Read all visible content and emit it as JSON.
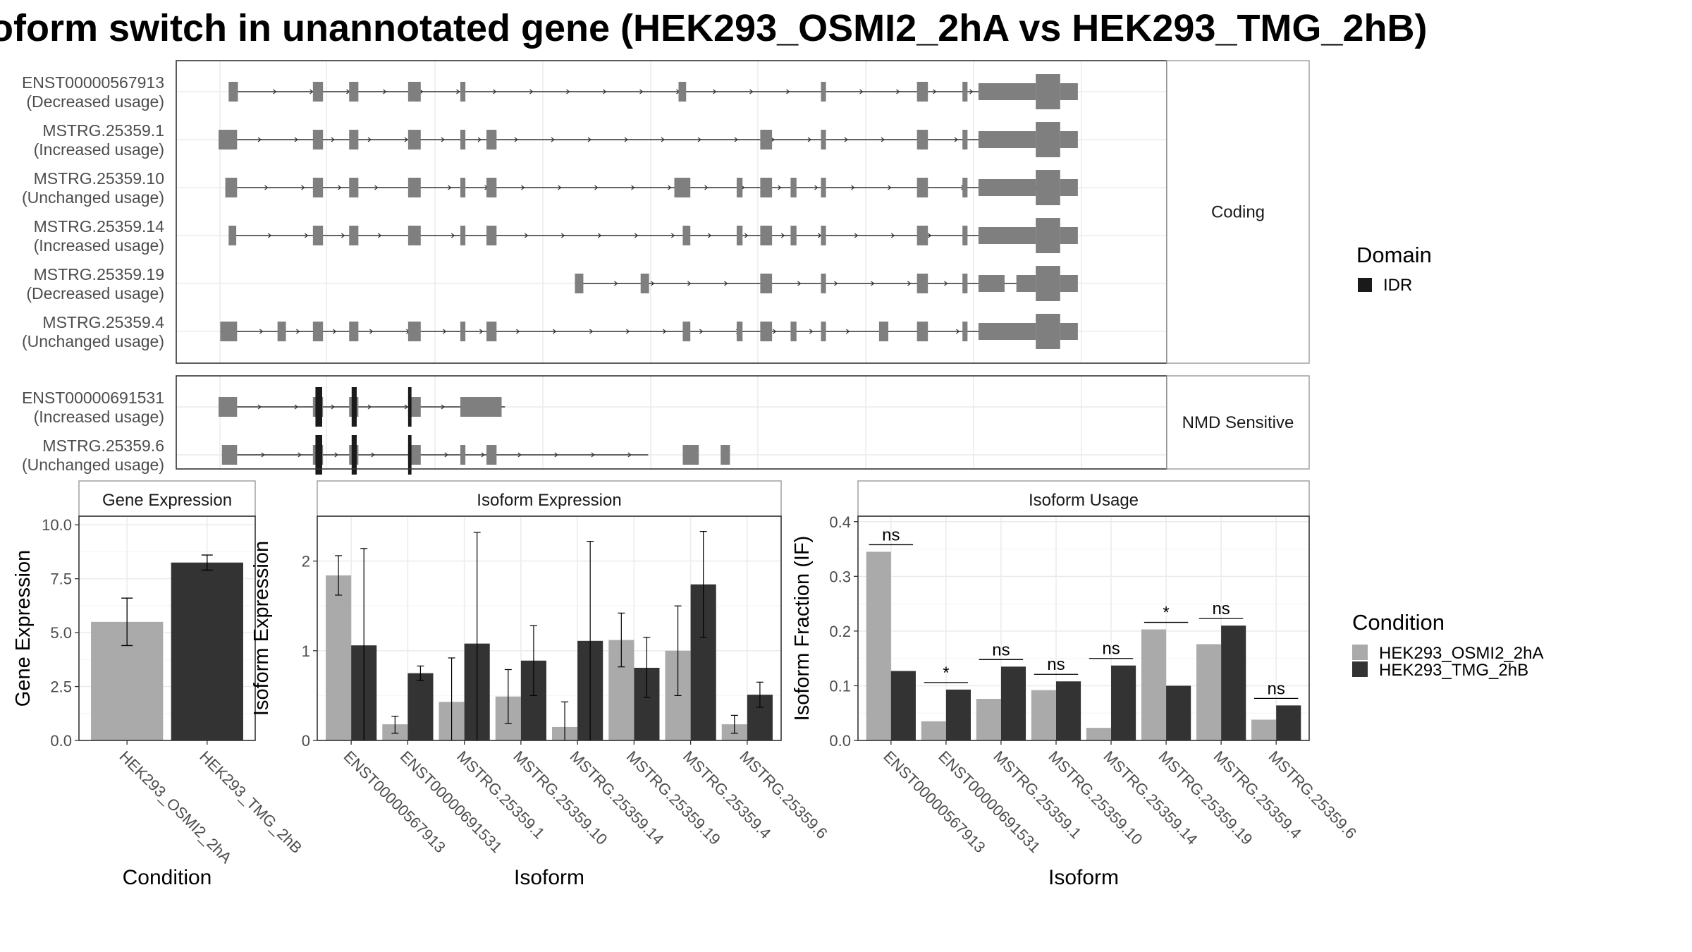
{
  "title": "oform switch in unannotated gene (HEK293_OSMI2_2hA vs HEK293_TMG_2hB)",
  "colors": {
    "exon": "#7f7f7f",
    "domain_idr": "#1a1a1a",
    "condition_a": "#aaaaaa",
    "condition_b": "#333333",
    "strip_border": "#999999",
    "panel_border": "#333333",
    "grid": "#ebebeb",
    "text": "#000000",
    "axis_text": "#4d4d4d"
  },
  "icons": {
    "domain_key": "filled-square",
    "condition_key": "filled-square"
  },
  "isoform_structure": {
    "coordinate_domain": [
      0,
      1000
    ],
    "groups": [
      {
        "strip_label": "Coding",
        "transcripts": [
          {
            "id": "ENST00000567913",
            "usage": "(Decreased usage)",
            "line": [
              18,
              1000
            ],
            "exons": [
              [
                12,
                23,
                "n"
              ],
              [
                112,
                124,
                "n"
              ],
              [
                155,
                166,
                "n"
              ],
              [
                225,
                240,
                "n"
              ],
              [
                287,
                293,
                "n"
              ],
              [
                546,
                555,
                "n"
              ],
              [
                715,
                721,
                "n"
              ],
              [
                829,
                842,
                "n"
              ],
              [
                883,
                889,
                "n"
              ],
              [
                902,
                970,
                "u"
              ],
              [
                970,
                999,
                "c"
              ],
              [
                999,
                1020,
                "u"
              ]
            ]
          },
          {
            "id": "MSTRG.25359.1",
            "usage": "(Increased usage)",
            "line": [
              0,
              1000
            ],
            "exons": [
              [
                0,
                22,
                "n"
              ],
              [
                112,
                124,
                "n"
              ],
              [
                155,
                166,
                "n"
              ],
              [
                225,
                240,
                "n"
              ],
              [
                287,
                293,
                "n"
              ],
              [
                318,
                330,
                "n"
              ],
              [
                643,
                657,
                "n"
              ],
              [
                715,
                721,
                "n"
              ],
              [
                829,
                842,
                "n"
              ],
              [
                883,
                889,
                "n"
              ],
              [
                902,
                970,
                "u"
              ],
              [
                970,
                999,
                "c"
              ],
              [
                999,
                1020,
                "u"
              ]
            ]
          },
          {
            "id": "MSTRG.25359.10",
            "usage": "(Unchanged usage)",
            "line": [
              8,
              1000
            ],
            "exons": [
              [
                8,
                22,
                "n"
              ],
              [
                112,
                124,
                "n"
              ],
              [
                155,
                166,
                "n"
              ],
              [
                225,
                240,
                "n"
              ],
              [
                287,
                293,
                "n"
              ],
              [
                318,
                330,
                "n"
              ],
              [
                541,
                560,
                "n"
              ],
              [
                615,
                622,
                "n"
              ],
              [
                643,
                657,
                "n"
              ],
              [
                679,
                686,
                "n"
              ],
              [
                715,
                721,
                "n"
              ],
              [
                829,
                842,
                "n"
              ],
              [
                883,
                889,
                "n"
              ],
              [
                902,
                970,
                "u"
              ],
              [
                970,
                999,
                "c"
              ],
              [
                999,
                1020,
                "u"
              ]
            ]
          },
          {
            "id": "MSTRG.25359.14",
            "usage": "(Increased usage)",
            "line": [
              12,
              1000
            ],
            "exons": [
              [
                12,
                21,
                "n"
              ],
              [
                112,
                124,
                "n"
              ],
              [
                155,
                166,
                "n"
              ],
              [
                225,
                240,
                "n"
              ],
              [
                287,
                293,
                "n"
              ],
              [
                318,
                330,
                "n"
              ],
              [
                551,
                560,
                "n"
              ],
              [
                615,
                622,
                "n"
              ],
              [
                643,
                657,
                "n"
              ],
              [
                679,
                686,
                "n"
              ],
              [
                715,
                721,
                "n"
              ],
              [
                829,
                842,
                "n"
              ],
              [
                883,
                889,
                "n"
              ],
              [
                902,
                970,
                "u"
              ],
              [
                970,
                999,
                "c"
              ],
              [
                999,
                1020,
                "u"
              ]
            ]
          },
          {
            "id": "MSTRG.25359.19",
            "usage": "(Decreased usage)",
            "line": [
              423,
              1000
            ],
            "exons": [
              [
                423,
                433,
                "n"
              ],
              [
                501,
                511,
                "n"
              ],
              [
                643,
                657,
                "n"
              ],
              [
                715,
                721,
                "n"
              ],
              [
                829,
                842,
                "n"
              ],
              [
                883,
                889,
                "n"
              ],
              [
                902,
                933,
                "u"
              ],
              [
                947,
                970,
                "u"
              ],
              [
                970,
                999,
                "c"
              ],
              [
                999,
                1020,
                "u"
              ]
            ]
          },
          {
            "id": "MSTRG.25359.4",
            "usage": "(Unchanged usage)",
            "line": [
              2,
              1000
            ],
            "exons": [
              [
                2,
                22,
                "n"
              ],
              [
                70,
                80,
                "n"
              ],
              [
                112,
                124,
                "n"
              ],
              [
                155,
                166,
                "n"
              ],
              [
                225,
                240,
                "n"
              ],
              [
                287,
                293,
                "n"
              ],
              [
                318,
                330,
                "n"
              ],
              [
                551,
                560,
                "n"
              ],
              [
                615,
                622,
                "n"
              ],
              [
                643,
                657,
                "n"
              ],
              [
                679,
                686,
                "n"
              ],
              [
                715,
                721,
                "n"
              ],
              [
                784,
                795,
                "n"
              ],
              [
                829,
                842,
                "n"
              ],
              [
                883,
                889,
                "n"
              ],
              [
                902,
                970,
                "u"
              ],
              [
                970,
                999,
                "c"
              ],
              [
                999,
                1020,
                "u"
              ]
            ]
          }
        ]
      },
      {
        "strip_label": "NMD Sensitive",
        "transcripts": [
          {
            "id": "ENST00000691531",
            "usage": "(Increased usage)",
            "line": [
              0,
              340
            ],
            "exons": [
              [
                0,
                22,
                "n"
              ],
              [
                112,
                124,
                "n"
              ],
              [
                155,
                166,
                "n"
              ],
              [
                225,
                240,
                "n"
              ],
              [
                287,
                336,
                "n"
              ]
            ],
            "domains": [
              [
                115,
                123
              ],
              [
                158,
                164
              ],
              [
                225,
                229
              ]
            ]
          },
          {
            "id": "MSTRG.25359.6",
            "usage": "(Unchanged usage)",
            "line": [
              4,
              510
            ],
            "exons": [
              [
                4,
                22,
                "n"
              ],
              [
                112,
                124,
                "n"
              ],
              [
                155,
                166,
                "n"
              ],
              [
                225,
                240,
                "n"
              ],
              [
                287,
                293,
                "n"
              ],
              [
                318,
                330,
                "n"
              ],
              [
                551,
                570,
                "n"
              ],
              [
                596,
                607,
                "n"
              ]
            ],
            "domains": [
              [
                115,
                123
              ],
              [
                158,
                164
              ],
              [
                225,
                229
              ]
            ]
          }
        ]
      }
    ]
  },
  "legend_domain": {
    "title": "Domain",
    "items": [
      {
        "label": "IDR"
      }
    ]
  },
  "legend_condition": {
    "title": "Condition",
    "items": [
      {
        "label": "HEK293_OSMI2_2hA"
      },
      {
        "label": "HEK293_TMG_2hB"
      }
    ]
  },
  "chart_data": [
    {
      "type": "bar",
      "title": "Gene Expression",
      "xlabel": "Condition",
      "ylabel": "Gene Expression",
      "ylim": [
        0,
        10.4
      ],
      "yticks": [
        "0.0",
        "2.5",
        "5.0",
        "7.5",
        "10.0"
      ],
      "categories": [
        "HEK293_OSMI2_2hA",
        "HEK293_TMG_2hB"
      ],
      "series": [
        {
          "name": "Gene Expression",
          "values": [
            5.5,
            8.25
          ]
        }
      ],
      "errors": [
        [
          4.4,
          6.6
        ],
        [
          7.9,
          8.6
        ]
      ],
      "grid": true
    },
    {
      "type": "bar",
      "title": "Isoform Expression",
      "xlabel": "Isoform",
      "ylabel": "Isoform Expression",
      "ylim": [
        0,
        2.5
      ],
      "yticks": [
        "0",
        "1",
        "2"
      ],
      "categories": [
        "ENST00000567913",
        "ENST00000691531",
        "MSTRG.25359.1",
        "MSTRG.25359.10",
        "MSTRG.25359.14",
        "MSTRG.25359.19",
        "MSTRG.25359.4",
        "MSTRG.25359.6"
      ],
      "series": [
        {
          "name": "HEK293_OSMI2_2hA",
          "values": [
            1.84,
            0.18,
            0.43,
            0.49,
            0.15,
            1.12,
            1.0,
            0.18
          ],
          "errors": [
            [
              1.62,
              2.06
            ],
            [
              0.08,
              0.27
            ],
            [
              0.0,
              0.92
            ],
            [
              0.19,
              0.79
            ],
            [
              0.0,
              0.43
            ],
            [
              0.82,
              1.42
            ],
            [
              0.5,
              1.5
            ],
            [
              0.08,
              0.28
            ]
          ]
        },
        {
          "name": "HEK293_TMG_2hB",
          "values": [
            1.06,
            0.75,
            1.08,
            0.89,
            1.11,
            0.81,
            1.74,
            0.51
          ],
          "errors": [
            [
              0.0,
              2.14
            ],
            [
              0.67,
              0.83
            ],
            [
              0.0,
              2.32
            ],
            [
              0.5,
              1.28
            ],
            [
              0.0,
              2.22
            ],
            [
              0.48,
              1.15
            ],
            [
              1.15,
              2.33
            ],
            [
              0.37,
              0.65
            ]
          ]
        }
      ],
      "legend": "right",
      "grid": true
    },
    {
      "type": "bar",
      "title": "Isoform Usage",
      "xlabel": "Isoform",
      "ylabel": "Isoform Fraction (IF)",
      "ylim": [
        0,
        0.41
      ],
      "yticks": [
        "0.0",
        "0.1",
        "0.2",
        "0.3",
        "0.4"
      ],
      "categories": [
        "ENST00000567913",
        "ENST00000691531",
        "MSTRG.25359.1",
        "MSTRG.25359.10",
        "MSTRG.25359.14",
        "MSTRG.25359.19",
        "MSTRG.25359.4",
        "MSTRG.25359.6"
      ],
      "series": [
        {
          "name": "HEK293_OSMI2_2hA",
          "values": [
            0.345,
            0.035,
            0.076,
            0.092,
            0.023,
            0.203,
            0.176,
            0.038
          ]
        },
        {
          "name": "HEK293_TMG_2hB",
          "values": [
            0.127,
            0.093,
            0.135,
            0.108,
            0.137,
            0.1,
            0.21,
            0.064
          ]
        }
      ],
      "significance": [
        "ns",
        "*",
        "ns",
        "ns",
        "ns",
        "*",
        "ns",
        "ns"
      ],
      "legend": "right",
      "grid": true
    }
  ]
}
